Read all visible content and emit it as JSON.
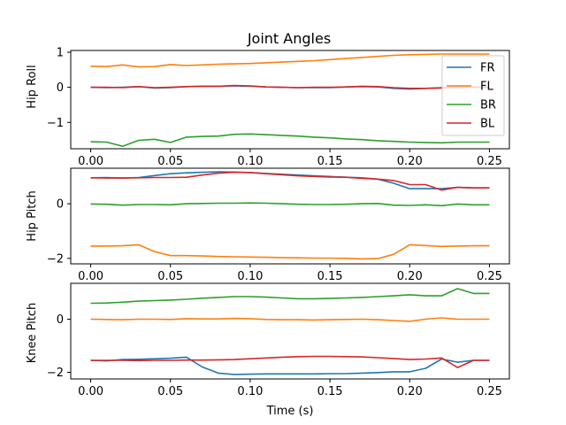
{
  "chart_data": [
    {
      "type": "line",
      "title": "Joint Angles",
      "ylabel": "Hip Roll",
      "xlabel": "",
      "xlim": [
        -0.0125,
        0.2625
      ],
      "ylim": [
        -1.75,
        1.05
      ],
      "xticks": [
        0.0,
        0.05,
        0.1,
        0.15,
        0.2,
        0.25
      ],
      "xtick_labels": [
        "0.00",
        "0.05",
        "0.10",
        "0.15",
        "0.20",
        "0.25"
      ],
      "yticks": [
        -1,
        0,
        1
      ],
      "ytick_labels": [
        "−1",
        "0",
        "1"
      ],
      "legend": {
        "position": "right",
        "entries": [
          "FR",
          "FL",
          "BR",
          "BL"
        ]
      },
      "x": [
        0.0,
        0.01,
        0.02,
        0.03,
        0.04,
        0.05,
        0.06,
        0.07,
        0.08,
        0.09,
        0.1,
        0.11,
        0.12,
        0.13,
        0.14,
        0.15,
        0.16,
        0.17,
        0.18,
        0.19,
        0.2,
        0.21,
        0.22,
        0.23,
        0.24,
        0.25
      ],
      "series": [
        {
          "name": "FR",
          "color": "#1f77b4",
          "values": [
            0.0,
            -0.01,
            0.0,
            0.02,
            -0.02,
            -0.01,
            0.02,
            0.03,
            0.03,
            0.04,
            0.03,
            0.01,
            0.0,
            -0.01,
            -0.01,
            -0.01,
            0.01,
            0.02,
            0.01,
            -0.03,
            -0.05,
            -0.03,
            -0.01,
            0.01,
            0.0,
            0.0
          ]
        },
        {
          "name": "FL",
          "color": "#ff7f0e",
          "values": [
            0.6,
            0.59,
            0.64,
            0.58,
            0.59,
            0.65,
            0.62,
            0.64,
            0.66,
            0.67,
            0.68,
            0.7,
            0.72,
            0.74,
            0.76,
            0.79,
            0.82,
            0.85,
            0.88,
            0.91,
            0.93,
            0.94,
            0.95,
            0.95,
            0.95,
            0.95
          ]
        },
        {
          "name": "BR",
          "color": "#2ca02c",
          "values": [
            -1.55,
            -1.56,
            -1.68,
            -1.51,
            -1.48,
            -1.57,
            -1.42,
            -1.4,
            -1.39,
            -1.34,
            -1.33,
            -1.35,
            -1.37,
            -1.39,
            -1.42,
            -1.44,
            -1.47,
            -1.49,
            -1.52,
            -1.54,
            -1.56,
            -1.57,
            -1.58,
            -1.56,
            -1.56,
            -1.56
          ]
        },
        {
          "name": "BL",
          "color": "#d62728",
          "values": [
            0.0,
            0.0,
            -0.01,
            0.02,
            -0.01,
            0.0,
            0.02,
            0.03,
            0.03,
            0.05,
            0.04,
            0.01,
            0.0,
            -0.01,
            0.0,
            0.0,
            0.01,
            0.03,
            0.02,
            -0.01,
            -0.03,
            -0.03,
            -0.02,
            0.0,
            0.0,
            0.0
          ]
        }
      ]
    },
    {
      "type": "line",
      "title": "",
      "ylabel": "Hip Pitch",
      "xlabel": "",
      "xlim": [
        -0.0125,
        0.2625
      ],
      "ylim": [
        -2.2,
        1.3
      ],
      "xticks": [
        0.0,
        0.05,
        0.1,
        0.15,
        0.2,
        0.25
      ],
      "xtick_labels": [
        "0.00",
        "0.05",
        "0.10",
        "0.15",
        "0.20",
        "0.25"
      ],
      "yticks": [
        -2,
        0
      ],
      "ytick_labels": [
        "−2",
        "0"
      ],
      "x": [
        0.0,
        0.01,
        0.02,
        0.03,
        0.04,
        0.05,
        0.06,
        0.07,
        0.08,
        0.09,
        0.1,
        0.11,
        0.12,
        0.13,
        0.14,
        0.15,
        0.16,
        0.17,
        0.18,
        0.19,
        0.2,
        0.21,
        0.22,
        0.23,
        0.24,
        0.25
      ],
      "series": [
        {
          "name": "FR",
          "color": "#1f77b4",
          "values": [
            0.95,
            0.96,
            0.94,
            0.96,
            1.03,
            1.1,
            1.13,
            1.15,
            1.17,
            1.16,
            1.14,
            1.11,
            1.08,
            1.05,
            1.02,
            1.0,
            0.97,
            0.95,
            0.9,
            0.75,
            0.55,
            0.55,
            0.55,
            0.6,
            0.58,
            0.58
          ]
        },
        {
          "name": "FL",
          "color": "#ff7f0e",
          "values": [
            -1.55,
            -1.55,
            -1.54,
            -1.5,
            -1.75,
            -1.9,
            -1.9,
            -1.91,
            -1.93,
            -1.94,
            -1.95,
            -1.96,
            -1.97,
            -1.98,
            -1.99,
            -1.99,
            -2.0,
            -2.02,
            -2.01,
            -1.85,
            -1.5,
            -1.53,
            -1.56,
            -1.55,
            -1.54,
            -1.54
          ]
        },
        {
          "name": "BR",
          "color": "#2ca02c",
          "values": [
            -0.01,
            -0.02,
            -0.05,
            -0.03,
            -0.03,
            -0.04,
            0.0,
            0.01,
            0.02,
            0.02,
            0.03,
            0.02,
            0.0,
            -0.02,
            -0.03,
            -0.03,
            -0.02,
            0.0,
            0.01,
            -0.05,
            -0.06,
            -0.04,
            -0.07,
            -0.01,
            -0.04,
            -0.04
          ]
        },
        {
          "name": "BL",
          "color": "#d62728",
          "values": [
            0.95,
            0.94,
            0.94,
            0.95,
            0.96,
            0.96,
            0.97,
            1.05,
            1.12,
            1.15,
            1.14,
            1.1,
            1.06,
            1.02,
            1.0,
            0.98,
            0.97,
            0.93,
            0.9,
            0.85,
            0.7,
            0.7,
            0.5,
            0.6,
            0.58,
            0.58
          ]
        }
      ]
    },
    {
      "type": "line",
      "title": "",
      "ylabel": "Knee Pitch",
      "xlabel": "Time (s)",
      "xlim": [
        -0.0125,
        0.2625
      ],
      "ylim": [
        -2.25,
        1.35
      ],
      "xticks": [
        0.0,
        0.05,
        0.1,
        0.15,
        0.2,
        0.25
      ],
      "xtick_labels": [
        "0.00",
        "0.05",
        "0.10",
        "0.15",
        "0.20",
        "0.25"
      ],
      "yticks": [
        -2,
        0
      ],
      "ytick_labels": [
        "−2",
        "0"
      ],
      "x": [
        0.0,
        0.01,
        0.02,
        0.03,
        0.04,
        0.05,
        0.06,
        0.07,
        0.08,
        0.09,
        0.1,
        0.11,
        0.12,
        0.13,
        0.14,
        0.15,
        0.16,
        0.17,
        0.18,
        0.19,
        0.2,
        0.21,
        0.22,
        0.23,
        0.24,
        0.25
      ],
      "series": [
        {
          "name": "FR",
          "color": "#1f77b4",
          "values": [
            -1.55,
            -1.57,
            -1.52,
            -1.51,
            -1.49,
            -1.47,
            -1.43,
            -1.8,
            -2.03,
            -2.08,
            -2.07,
            -2.06,
            -2.06,
            -2.06,
            -2.06,
            -2.05,
            -2.05,
            -2.03,
            -2.01,
            -1.98,
            -1.98,
            -1.85,
            -1.5,
            -1.62,
            -1.55,
            -1.55
          ]
        },
        {
          "name": "FL",
          "color": "#ff7f0e",
          "values": [
            0.0,
            -0.01,
            -0.02,
            0.0,
            0.0,
            -0.01,
            0.02,
            0.01,
            0.01,
            0.03,
            0.02,
            -0.01,
            -0.02,
            -0.02,
            -0.03,
            -0.02,
            -0.01,
            0.0,
            -0.02,
            -0.05,
            -0.08,
            0.0,
            0.05,
            0.0,
            0.0,
            0.0
          ]
        },
        {
          "name": "BR",
          "color": "#2ca02c",
          "values": [
            0.6,
            0.61,
            0.64,
            0.68,
            0.7,
            0.72,
            0.75,
            0.79,
            0.82,
            0.85,
            0.85,
            0.83,
            0.8,
            0.77,
            0.77,
            0.78,
            0.8,
            0.82,
            0.85,
            0.88,
            0.92,
            0.88,
            0.88,
            1.15,
            0.97,
            0.97
          ]
        },
        {
          "name": "BL",
          "color": "#d62728",
          "values": [
            -1.55,
            -1.55,
            -1.55,
            -1.56,
            -1.55,
            -1.55,
            -1.54,
            -1.54,
            -1.53,
            -1.52,
            -1.49,
            -1.46,
            -1.43,
            -1.41,
            -1.4,
            -1.4,
            -1.41,
            -1.42,
            -1.45,
            -1.48,
            -1.52,
            -1.5,
            -1.46,
            -1.82,
            -1.55,
            -1.55
          ]
        }
      ]
    }
  ]
}
